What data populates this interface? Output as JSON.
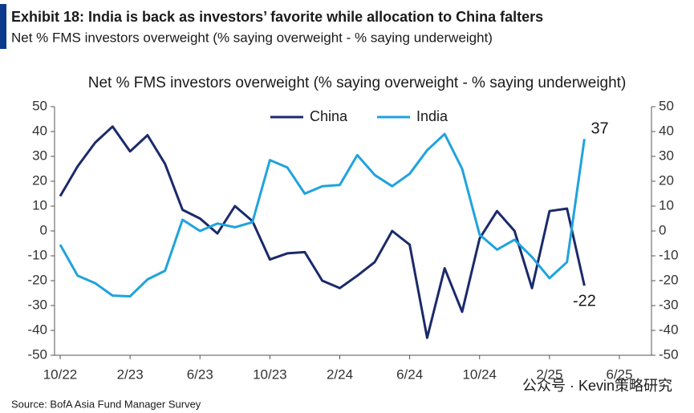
{
  "header": {
    "title": "Exhibit 18: India is back as investors’ favorite while allocation to China falters",
    "subtitle": "Net % FMS investors overweight (% saying overweight - % saying underweight)"
  },
  "chart_data": {
    "type": "line",
    "title": "Net % FMS investors overweight (% saying overweight - % saying underweight)",
    "categories": [
      "10/22",
      null,
      null,
      null,
      "2/23",
      null,
      null,
      null,
      "6/23",
      null,
      null,
      null,
      "10/23",
      null,
      null,
      null,
      "2/24",
      null,
      null,
      null,
      "6/24",
      null,
      null,
      null,
      "10/24",
      null,
      null,
      null,
      "2/25",
      null,
      null,
      null,
      "6/25"
    ],
    "series": [
      {
        "name": "China",
        "color": "#1b2a6b",
        "values": [
          14,
          26,
          35.5,
          42,
          32,
          38.5,
          27,
          8.5,
          5,
          -1,
          10,
          4,
          -11.5,
          -9,
          -8.5,
          -20,
          -23,
          -18,
          -12.5,
          0,
          -5.5,
          -43,
          -15,
          -32.5,
          -3,
          8,
          0,
          -23,
          8,
          9,
          -22,
          null,
          null
        ]
      },
      {
        "name": "India",
        "color": "#1fa3dd",
        "values": [
          -5.5,
          -18,
          -21,
          -26,
          -26.3,
          -19.5,
          -16,
          4.5,
          0,
          3,
          1.5,
          3.5,
          28.5,
          25.5,
          15,
          18,
          18.5,
          30.5,
          22.5,
          18,
          23,
          32.5,
          39,
          25,
          -1.5,
          -7.5,
          -3.5,
          -10.5,
          -19,
          -12.5,
          37,
          null,
          null
        ]
      }
    ],
    "ylim": [
      -50,
      50
    ],
    "yticks": [
      -50,
      -40,
      -30,
      -20,
      -10,
      0,
      10,
      20,
      30,
      40,
      50
    ],
    "legend": "top",
    "end_labels": true
  },
  "source": "Source: BofA Asia Fund Manager Survey",
  "watermark": "公众号 · Kevin策略研究"
}
